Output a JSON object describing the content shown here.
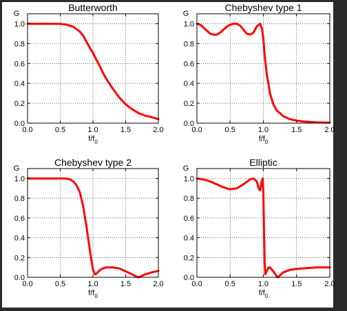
{
  "chart_data": [
    {
      "type": "line",
      "title": "Butterworth",
      "xlabel": "f/f",
      "xlabel_sub": "0",
      "ylabel": "G",
      "xlim": [
        0,
        2
      ],
      "ylim": [
        0,
        1.1
      ],
      "xticks": [
        "0.0",
        "0.5",
        "1.0",
        "1.5",
        "2.0"
      ],
      "yticks": [
        "0.0",
        "0.2",
        "0.4",
        "0.6",
        "0.8",
        "1.0"
      ],
      "grid": true,
      "color": "#ff0000",
      "x": [
        0,
        0.1,
        0.2,
        0.3,
        0.4,
        0.5,
        0.6,
        0.7,
        0.8,
        0.85,
        0.9,
        0.95,
        1.0,
        1.05,
        1.1,
        1.15,
        1.2,
        1.3,
        1.4,
        1.5,
        1.6,
        1.7,
        1.8,
        1.9,
        2.0
      ],
      "y": [
        1.0,
        1.0,
        1.0,
        1.0,
        1.0,
        0.998,
        0.99,
        0.97,
        0.92,
        0.88,
        0.82,
        0.76,
        0.707,
        0.64,
        0.58,
        0.51,
        0.45,
        0.35,
        0.26,
        0.19,
        0.14,
        0.1,
        0.075,
        0.06,
        0.04
      ]
    },
    {
      "type": "line",
      "title": "Chebyshev type 1",
      "xlabel": "f/f",
      "xlabel_sub": "0",
      "ylabel": "G",
      "xlim": [
        0,
        2
      ],
      "ylim": [
        0,
        1.1
      ],
      "xticks": [
        "0.0",
        "0.5",
        "1.0",
        "1.5",
        "2.0"
      ],
      "yticks": [
        "0.0",
        "0.2",
        "0.4",
        "0.6",
        "0.8",
        "1.0"
      ],
      "grid": true,
      "color": "#ff0000",
      "x": [
        0,
        0.05,
        0.1,
        0.15,
        0.2,
        0.25,
        0.3,
        0.35,
        0.4,
        0.45,
        0.5,
        0.55,
        0.6,
        0.65,
        0.7,
        0.75,
        0.8,
        0.85,
        0.9,
        0.95,
        0.98,
        1.0,
        1.02,
        1.05,
        1.1,
        1.15,
        1.2,
        1.3,
        1.4,
        1.5,
        1.6,
        1.7,
        1.8,
        2.0
      ],
      "y": [
        1.0,
        0.99,
        0.96,
        0.93,
        0.9,
        0.89,
        0.89,
        0.91,
        0.94,
        0.97,
        0.99,
        1.0,
        1.0,
        0.98,
        0.94,
        0.9,
        0.89,
        0.91,
        0.97,
        1.0,
        0.95,
        0.85,
        0.68,
        0.5,
        0.3,
        0.19,
        0.13,
        0.07,
        0.04,
        0.025,
        0.017,
        0.012,
        0.008,
        0.005
      ]
    },
    {
      "type": "line",
      "title": "Chebyshev type 2",
      "xlabel": "f/f",
      "xlabel_sub": "0",
      "ylabel": "G",
      "xlim": [
        0,
        2
      ],
      "ylim": [
        0,
        1.1
      ],
      "xticks": [
        "0.0",
        "0.5",
        "1.0",
        "1.5",
        "2.0"
      ],
      "yticks": [
        "0.0",
        "0.2",
        "0.4",
        "0.6",
        "0.8",
        "1.0"
      ],
      "grid": true,
      "color": "#ff0000",
      "x": [
        0,
        0.2,
        0.4,
        0.5,
        0.6,
        0.65,
        0.7,
        0.75,
        0.8,
        0.85,
        0.88,
        0.9,
        0.93,
        0.96,
        1.0,
        1.03,
        1.06,
        1.1,
        1.15,
        1.2,
        1.25,
        1.3,
        1.4,
        1.5,
        1.55,
        1.6,
        1.65,
        1.7,
        1.75,
        1.8,
        1.9,
        2.0
      ],
      "y": [
        1.0,
        1.0,
        1.0,
        1.0,
        0.998,
        0.99,
        0.97,
        0.93,
        0.86,
        0.72,
        0.6,
        0.52,
        0.38,
        0.24,
        0.08,
        0.03,
        0.04,
        0.07,
        0.09,
        0.1,
        0.1,
        0.1,
        0.09,
        0.06,
        0.045,
        0.03,
        0.012,
        0.0,
        0.015,
        0.03,
        0.05,
        0.065
      ]
    },
    {
      "type": "line",
      "title": "Elliptic",
      "xlabel": "f/f",
      "xlabel_sub": "0",
      "ylabel": "G",
      "xlim": [
        0,
        2
      ],
      "ylim": [
        0,
        1.1
      ],
      "xticks": [
        "0.0",
        "0.5",
        "1.0",
        "1.5",
        "2.0"
      ],
      "yticks": [
        "0.0",
        "0.2",
        "0.4",
        "0.6",
        "0.8",
        "1.0"
      ],
      "grid": true,
      "color": "#ff0000",
      "x": [
        0,
        0.1,
        0.2,
        0.3,
        0.4,
        0.5,
        0.6,
        0.7,
        0.8,
        0.85,
        0.9,
        0.93,
        0.95,
        0.97,
        0.99,
        1.0,
        1.01,
        1.02,
        1.03,
        1.05,
        1.08,
        1.1,
        1.15,
        1.2,
        1.22,
        1.25,
        1.3,
        1.4,
        1.5,
        1.6,
        1.7,
        1.8,
        1.9,
        2.0
      ],
      "y": [
        1.0,
        0.99,
        0.97,
        0.94,
        0.91,
        0.89,
        0.9,
        0.94,
        0.99,
        1.0,
        0.97,
        0.9,
        0.88,
        0.95,
        1.0,
        0.85,
        0.45,
        0.15,
        0.03,
        0.06,
        0.1,
        0.1,
        0.06,
        0.01,
        0.0,
        0.02,
        0.05,
        0.075,
        0.085,
        0.09,
        0.095,
        0.1,
        0.1,
        0.1
      ]
    }
  ]
}
